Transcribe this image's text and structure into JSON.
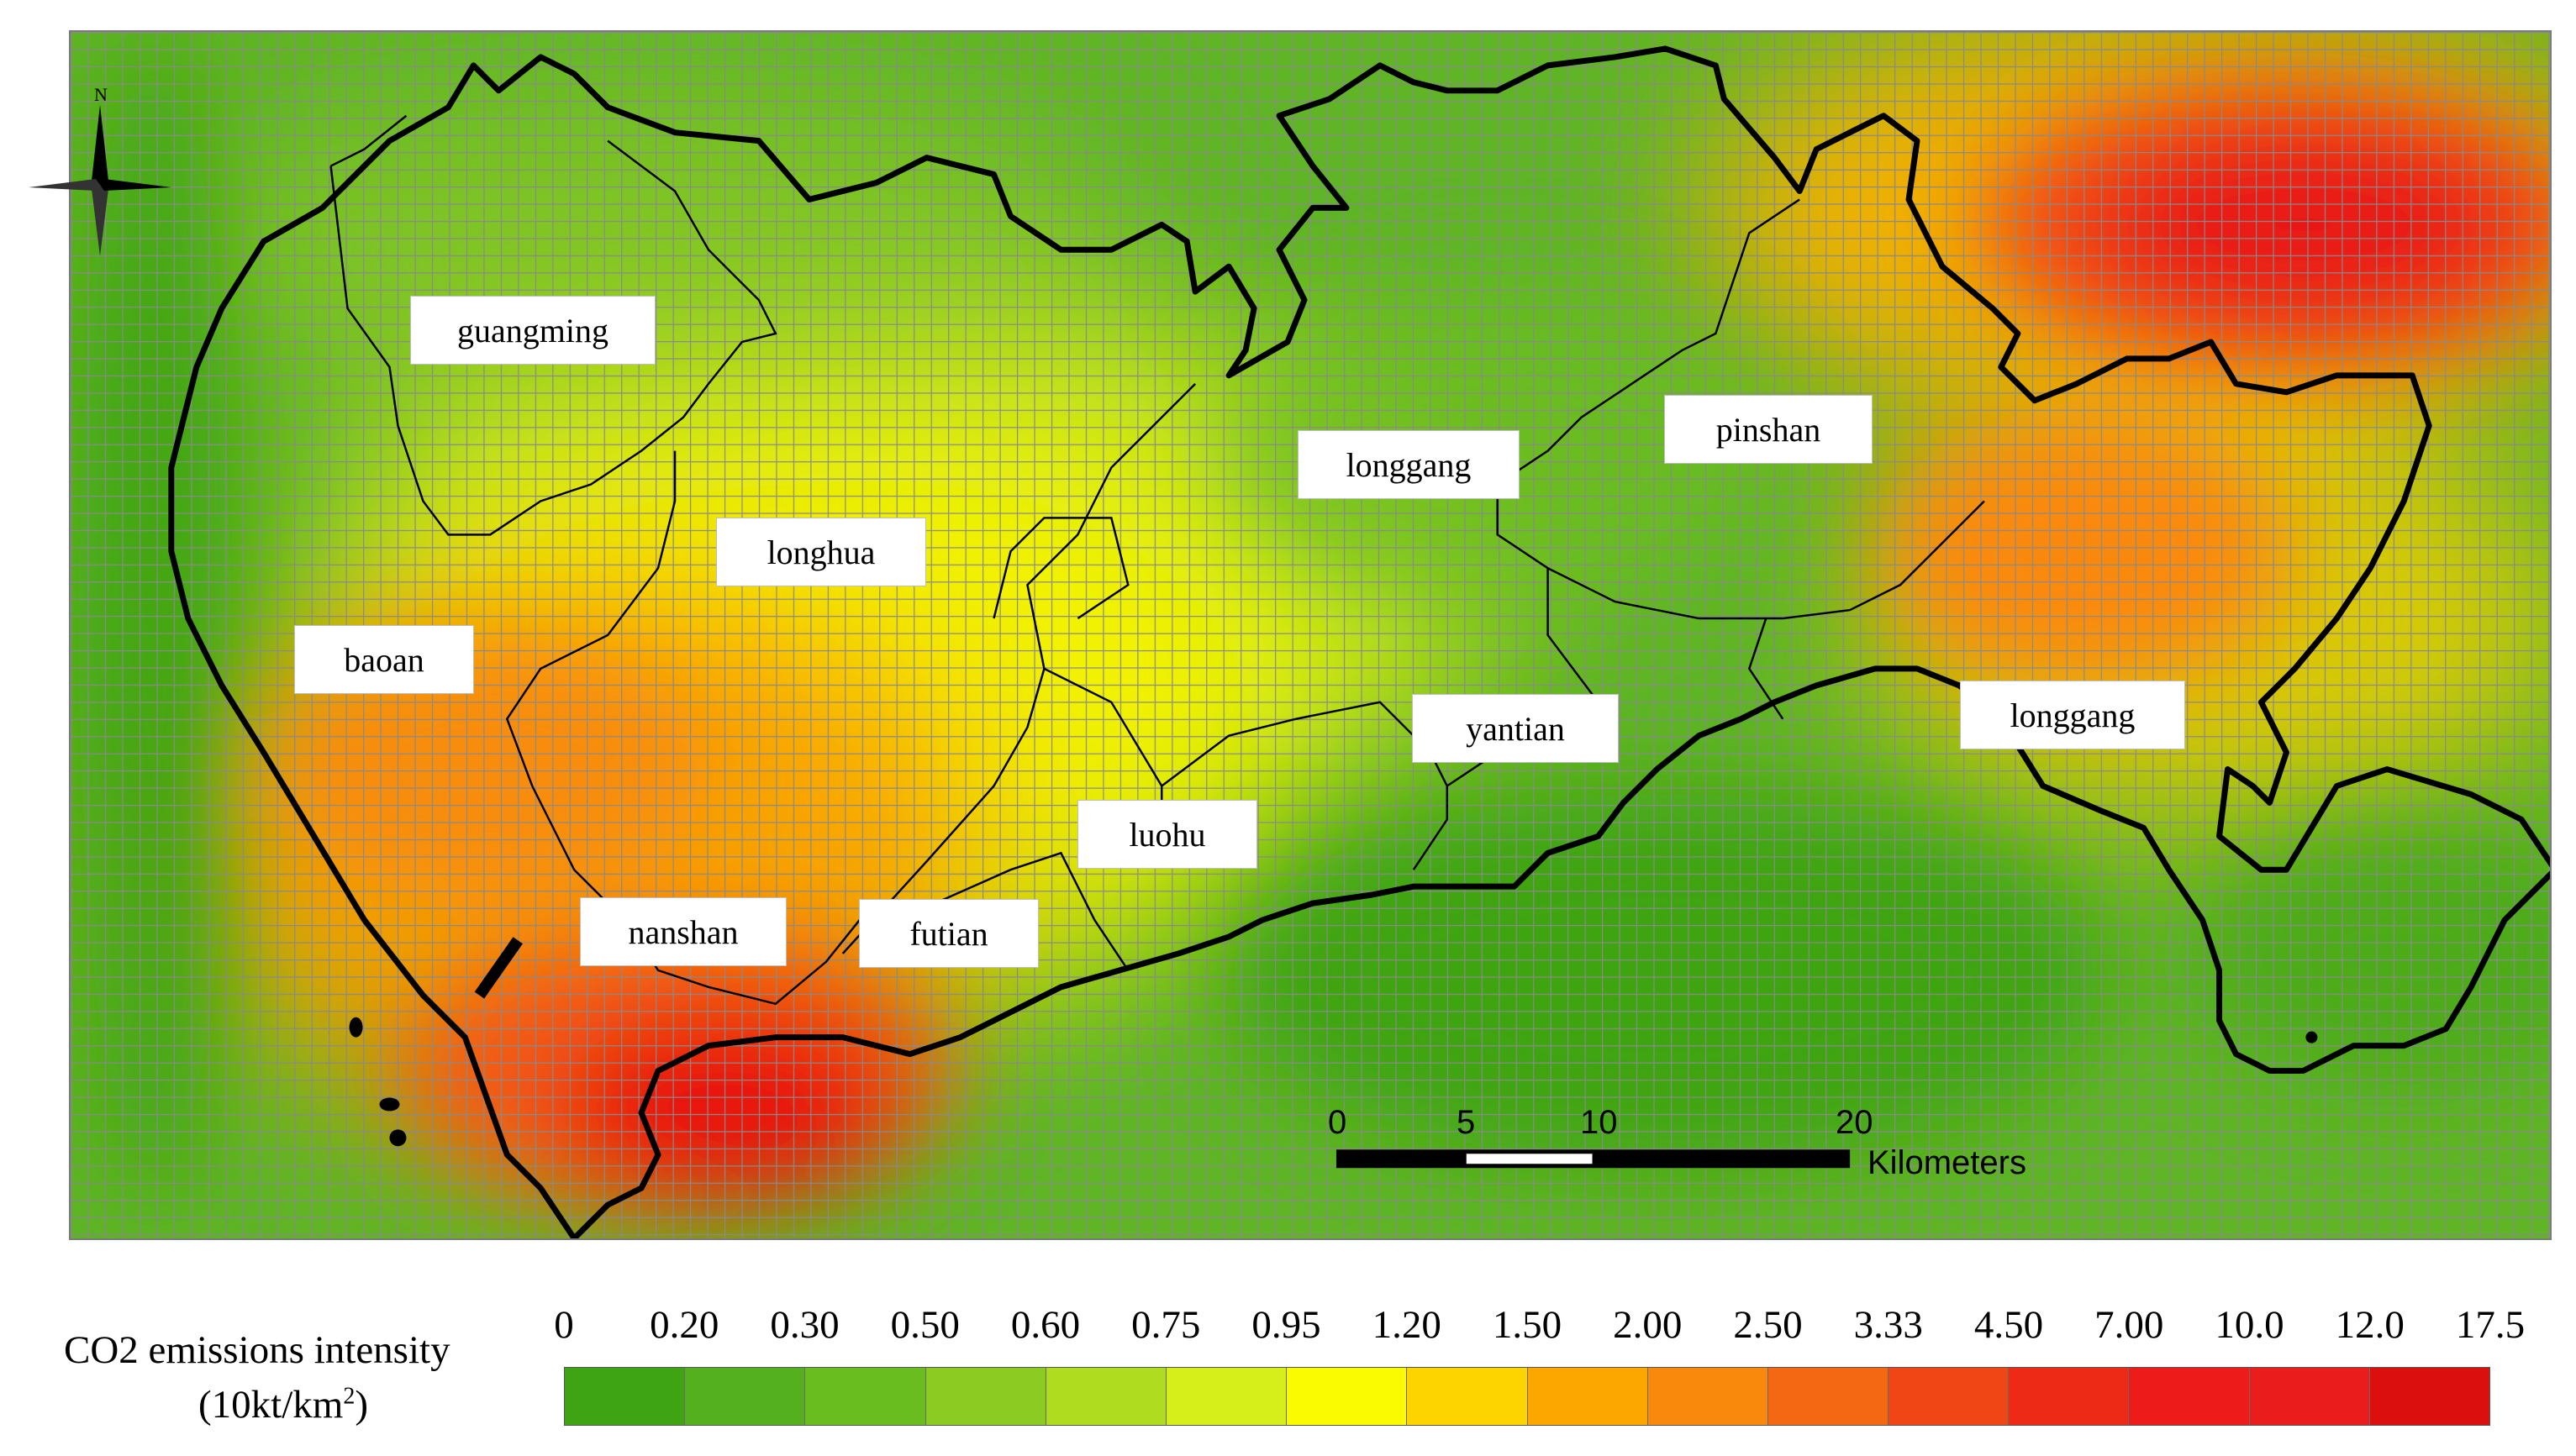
{
  "map": {
    "compass_label": "N",
    "districts": [
      {
        "id": "guangming",
        "label": "guangming"
      },
      {
        "id": "longhua",
        "label": "longhua"
      },
      {
        "id": "baoan",
        "label": "baoan"
      },
      {
        "id": "longgang-1",
        "label": "longgang"
      },
      {
        "id": "pinshan",
        "label": "pinshan"
      },
      {
        "id": "yantian",
        "label": "yantian"
      },
      {
        "id": "luohu",
        "label": "luohu"
      },
      {
        "id": "nanshan",
        "label": "nanshan"
      },
      {
        "id": "futian",
        "label": "futian"
      },
      {
        "id": "longgang-2",
        "label": "longgang"
      }
    ],
    "scale_bar": {
      "ticks": [
        "0",
        "5",
        "10",
        "20"
      ],
      "unit": "Kilometers"
    }
  },
  "legend": {
    "title_line1": "CO2 emissions intensity",
    "title_line2_prefix": "(10kt/km",
    "title_line2_sup": "2",
    "title_line2_suffix": ")",
    "breaks": [
      "0",
      "0.20",
      "0.30",
      "0.50",
      "0.60",
      "0.75",
      "0.95",
      "1.20",
      "1.50",
      "2.00",
      "2.50",
      "3.33",
      "4.50",
      "7.00",
      "10.0",
      "12.0",
      "17.5"
    ],
    "colors": [
      "#3fa413",
      "#54b01e",
      "#6abd1f",
      "#8ccb22",
      "#afdc1f",
      "#d6ee1a",
      "#fbfb00",
      "#fdd400",
      "#fca700",
      "#f9890d",
      "#f46713",
      "#f04615",
      "#ec2a15",
      "#ee1b1b",
      "#ea1c1c",
      "#dc0f0f"
    ]
  }
}
